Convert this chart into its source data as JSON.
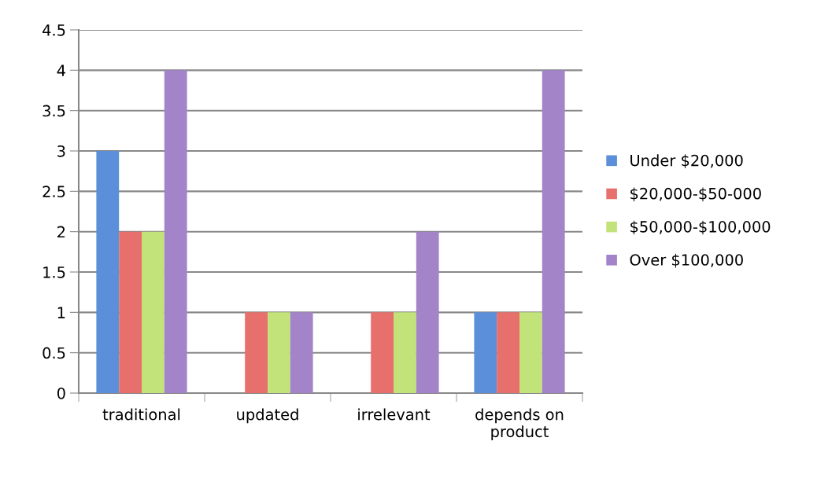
{
  "chart_data": {
    "type": "bar",
    "categories": [
      "traditional",
      "updated",
      "irrelevant",
      "depends on\nproduct"
    ],
    "series": [
      {
        "name": "Under $20,000",
        "color": "#5b8fd9",
        "values": [
          3,
          0,
          0,
          1
        ]
      },
      {
        "name": "$20,000-$50-000",
        "color": "#e8706c",
        "values": [
          2,
          1,
          1,
          1
        ]
      },
      {
        "name": "$50,000-$100,000",
        "color": "#c2e27a",
        "values": [
          2,
          1,
          1,
          1
        ]
      },
      {
        "name": "Over $100,000",
        "color": "#a384c8",
        "values": [
          4,
          1,
          2,
          4
        ]
      }
    ],
    "ylim": [
      0,
      4.5
    ],
    "yticks": [
      0,
      0.5,
      1,
      1.5,
      2,
      2.5,
      3,
      3.5,
      4,
      4.5
    ],
    "grid": "y",
    "legend": "right"
  }
}
